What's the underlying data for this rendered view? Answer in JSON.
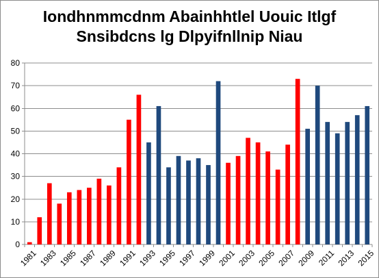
{
  "chart_data": {
    "type": "bar",
    "title_lines": [
      "Iondhnmmcdnm Abainhhtlel Uouic Itlgf",
      "Snsibdcns lg Dlpyifnllnip Niau"
    ],
    "xlabel": "",
    "ylabel": "",
    "ylim": [
      0,
      80
    ],
    "yticks": [
      0,
      10,
      20,
      30,
      40,
      50,
      60,
      70,
      80
    ],
    "grid": true,
    "legend": "none",
    "colors": {
      "red": "#ff0000",
      "blue": "#1f497d",
      "grid": "#8c8c8c",
      "axis": "#8c8c8c"
    },
    "categories": [
      "1981",
      "1982",
      "1983",
      "1984",
      "1985",
      "1986",
      "1987",
      "1988",
      "1989",
      "1990",
      "1991",
      "1992",
      "1993",
      "1994",
      "1995",
      "1996",
      "1997",
      "1998",
      "1999",
      "2000",
      "2001",
      "2002",
      "2003",
      "2004",
      "2005",
      "2006",
      "2007",
      "2008",
      "2009",
      "2010",
      "2011",
      "2012",
      "2013",
      "2014",
      "2015"
    ],
    "xtick_labels": [
      "1981",
      "1983",
      "1985",
      "1987",
      "1989",
      "1991",
      "1993",
      "1995",
      "1997",
      "1999",
      "2001",
      "2003",
      "2005",
      "2007",
      "2009",
      "2011",
      "2013",
      "2015"
    ],
    "values": [
      1,
      12,
      27,
      18,
      23,
      24,
      25,
      29,
      26,
      34,
      55,
      66,
      45,
      61,
      34,
      39,
      37,
      38,
      35,
      72,
      36,
      39,
      47,
      45,
      41,
      33,
      44,
      73,
      51,
      70,
      54,
      49,
      54,
      57,
      61
    ],
    "bar_colors": [
      "red",
      "red",
      "red",
      "red",
      "red",
      "red",
      "red",
      "red",
      "red",
      "red",
      "red",
      "red",
      "blue",
      "blue",
      "blue",
      "blue",
      "blue",
      "blue",
      "blue",
      "blue",
      "red",
      "red",
      "red",
      "red",
      "red",
      "red",
      "red",
      "red",
      "blue",
      "blue",
      "blue",
      "blue",
      "blue",
      "blue",
      "blue"
    ]
  }
}
